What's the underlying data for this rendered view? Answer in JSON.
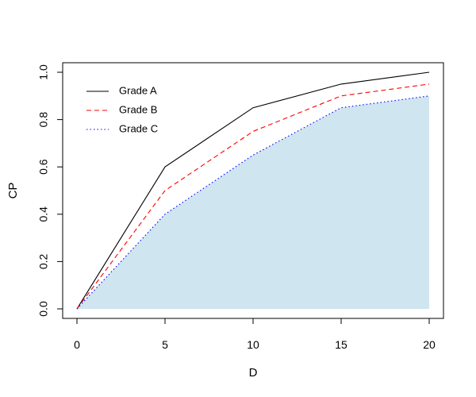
{
  "chart_data": {
    "type": "line",
    "xlabel": "D",
    "ylabel": "CP",
    "xlim": [
      0,
      20
    ],
    "ylim": [
      0,
      1
    ],
    "x": [
      0,
      5,
      10,
      15,
      20
    ],
    "xticks": [
      "0",
      "5",
      "10",
      "15",
      "20"
    ],
    "yticks": [
      "0.0",
      "0.2",
      "0.4",
      "0.6",
      "0.8",
      "1.0"
    ],
    "grid": false,
    "legend_position": "top-left",
    "series": [
      {
        "name": "Grade A",
        "values": [
          0,
          0.6,
          0.85,
          0.95,
          1.0
        ],
        "color": "#000000",
        "line_style": "solid"
      },
      {
        "name": "Grade B",
        "values": [
          0,
          0.5,
          0.75,
          0.9,
          0.95
        ],
        "color": "#ff0000",
        "line_style": "dashed"
      },
      {
        "name": "Grade C",
        "values": [
          0,
          0.4,
          0.65,
          0.85,
          0.9
        ],
        "color": "#0000ff",
        "line_style": "dotted"
      }
    ],
    "shaded_series": "Grade C",
    "shade_color": "#cfe5ef"
  }
}
